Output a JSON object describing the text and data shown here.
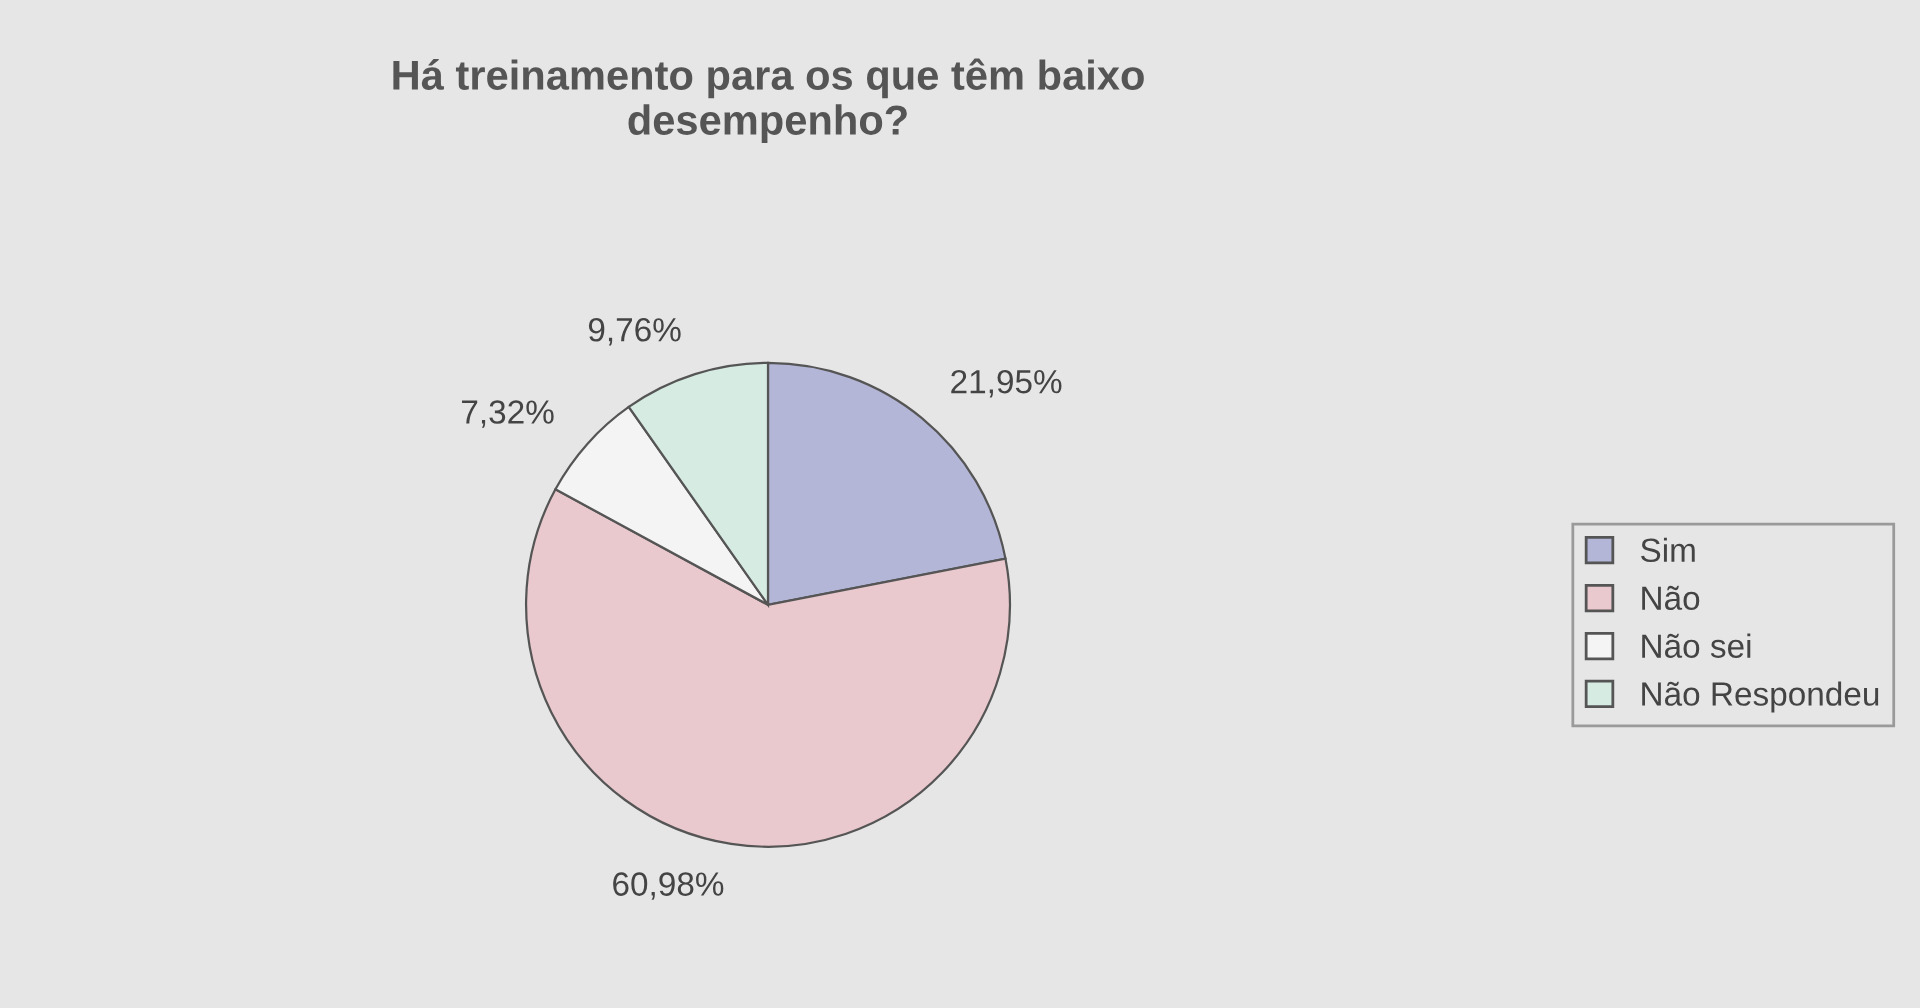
{
  "chart_data": {
    "type": "pie",
    "title": "Há treinamento para os que têm baixo\ndesempenho?",
    "categories": [
      "Sim",
      "Não",
      "Não sei",
      "Não Respondeu"
    ],
    "values": [
      21.95,
      60.98,
      7.32,
      9.76
    ],
    "value_labels": [
      "21,95%",
      "60,98%",
      "7,32%",
      "9,76%"
    ],
    "colors": [
      "#b3b6d6",
      "#e9c9ce",
      "#f4f4f4",
      "#d6ebe2"
    ],
    "legend": "right"
  }
}
